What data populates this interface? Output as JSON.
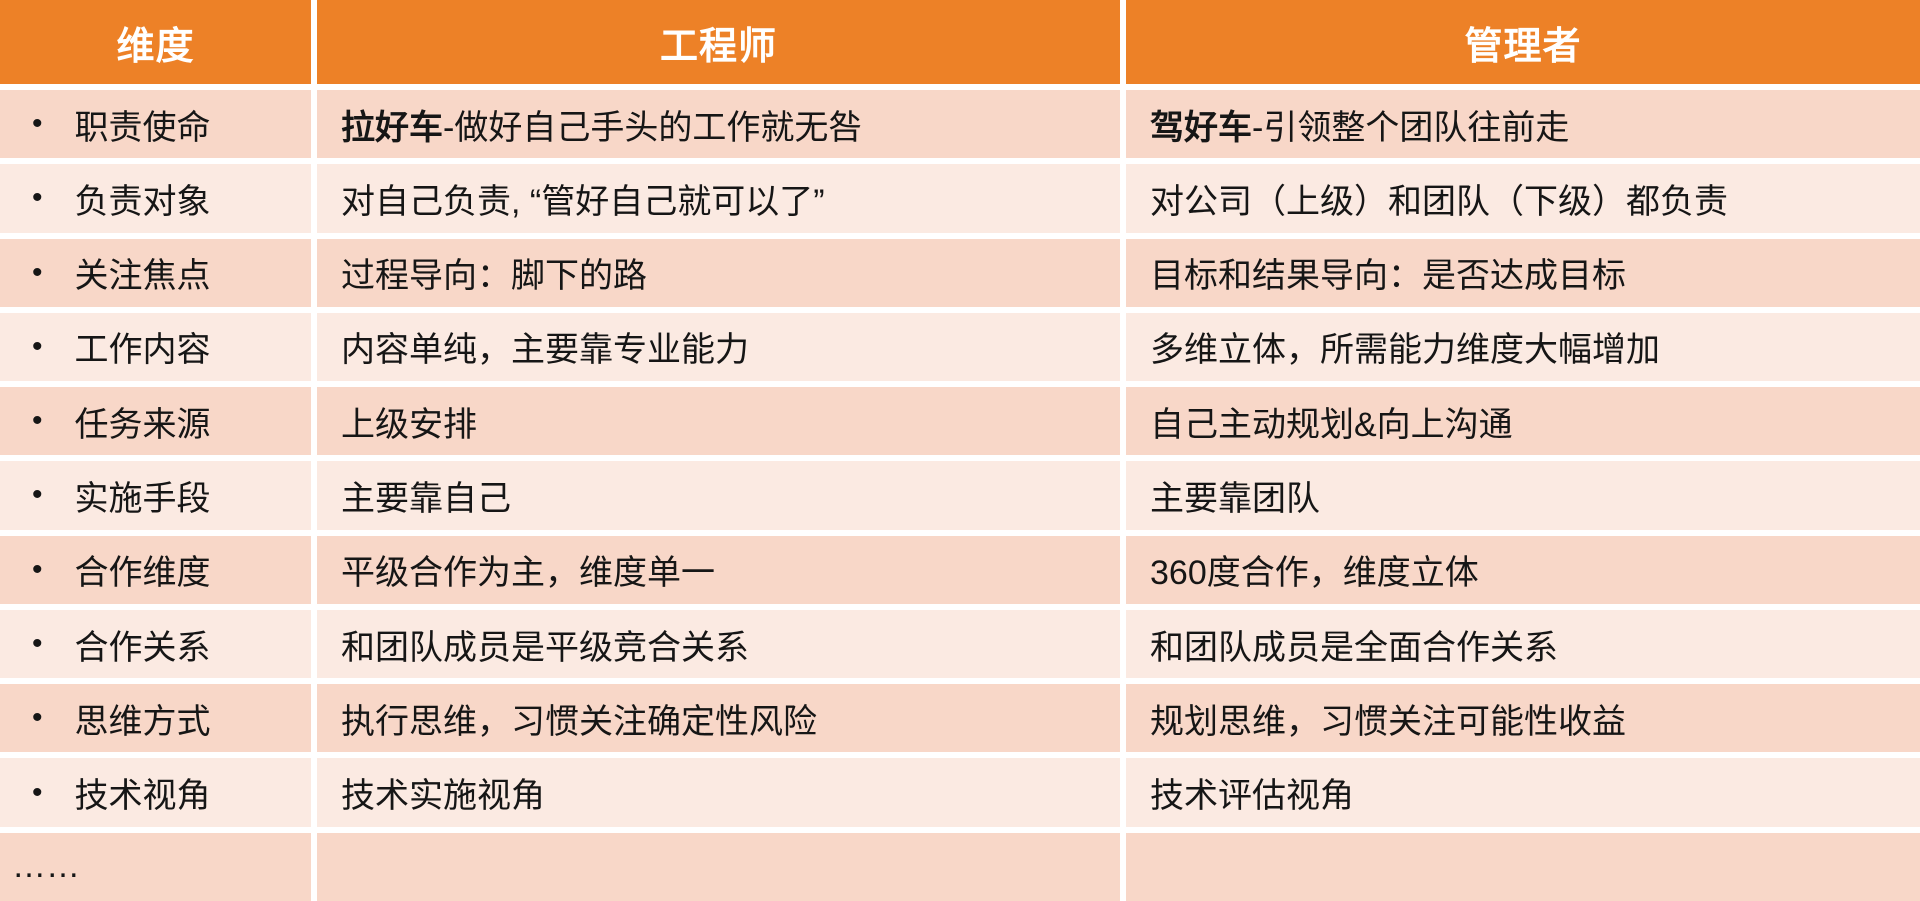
{
  "colors": {
    "header_bg": "#ED8127",
    "header_text": "#FFFFFF",
    "band_dark": "#F8D7C8",
    "band_light": "#FBEAE2",
    "body_text": "#161616"
  },
  "table": {
    "bullet_glyph": "•",
    "columns": [
      "维度",
      "工程师",
      "管理者"
    ],
    "rows": [
      {
        "dimension": "职责使命",
        "engineer_bold": "拉好车",
        "engineer": "-做好自己手头的工作就无咎",
        "manager_bold": "驾好车",
        "manager": "-引领整个团队往前走"
      },
      {
        "dimension": "负责对象",
        "engineer_bold": "",
        "engineer": "对自己负责, “管好自己就可以了”",
        "manager_bold": "",
        "manager": "对公司（上级）和团队（下级）都负责"
      },
      {
        "dimension": "关注焦点",
        "engineer_bold": "",
        "engineer": "过程导向：脚下的路",
        "manager_bold": "",
        "manager": "目标和结果导向：是否达成目标"
      },
      {
        "dimension": "工作内容",
        "engineer_bold": "",
        "engineer": "内容单纯，主要靠专业能力",
        "manager_bold": "",
        "manager": "多维立体，所需能力维度大幅增加"
      },
      {
        "dimension": "任务来源",
        "engineer_bold": "",
        "engineer": "上级安排",
        "manager_bold": "",
        "manager": "自己主动规划&向上沟通"
      },
      {
        "dimension": "实施手段",
        "engineer_bold": "",
        "engineer": "主要靠自己",
        "manager_bold": "",
        "manager": "主要靠团队"
      },
      {
        "dimension": "合作维度",
        "engineer_bold": "",
        "engineer": "平级合作为主，维度单一",
        "manager_bold": "",
        "manager": "360度合作，维度立体"
      },
      {
        "dimension": "合作关系",
        "engineer_bold": "",
        "engineer": "和团队成员是平级竞合关系",
        "manager_bold": "",
        "manager": "和团队成员是全面合作关系"
      },
      {
        "dimension": "思维方式",
        "engineer_bold": "",
        "engineer": "执行思维，习惯关注确定性风险",
        "manager_bold": "",
        "manager": "规划思维，习惯关注可能性收益"
      },
      {
        "dimension": "技术视角",
        "engineer_bold": "",
        "engineer": "技术实施视角",
        "manager_bold": "",
        "manager": "技术评估视角"
      },
      {
        "dimension": "……",
        "engineer_bold": "",
        "engineer": "",
        "manager_bold": "",
        "manager": ""
      }
    ]
  }
}
